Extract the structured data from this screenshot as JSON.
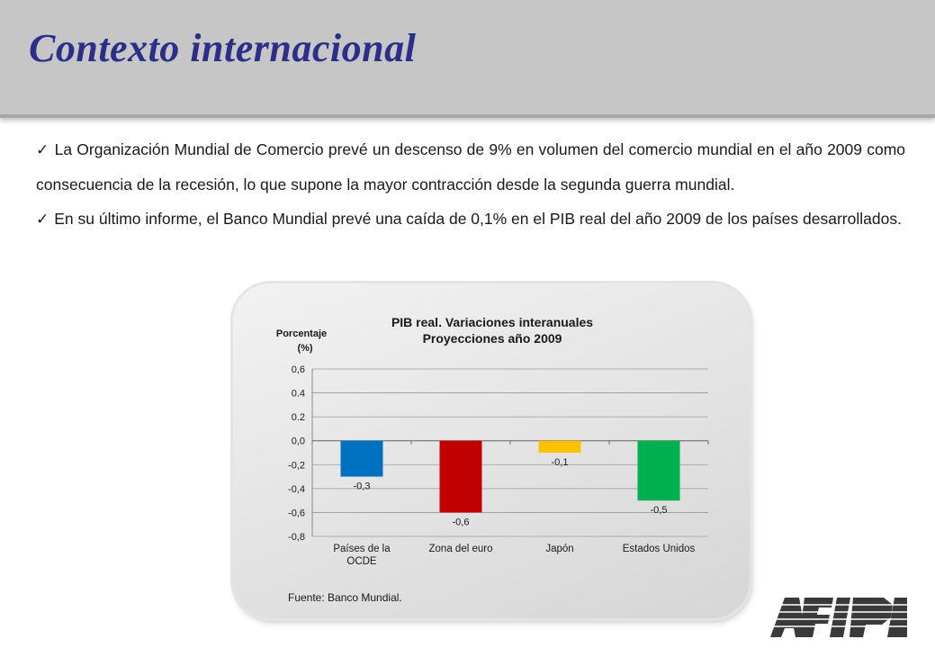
{
  "slide": {
    "title": "Contexto internacional",
    "bullets": [
      "La Organización Mundial de Comercio prevé un descenso de 9% en volumen del comercio mundial en el año 2009 como consecuencia de la recesión, lo que supone la mayor contracción desde la segunda guerra mundial.",
      "En su último informe, el Banco Mundial prevé una caída de 0,1% en el PIB real del año 2009 de los países desarrollados."
    ],
    "check_glyph": "✓",
    "source": "Fuente: Banco Mundial.",
    "logo_text": "AFIP"
  },
  "chart_data": {
    "type": "bar",
    "title": "PIB real. Variaciones interanuales",
    "subtitle": "Proyecciones año 2009",
    "ylabel": "Porcentaje (%)",
    "categories": [
      "Países de la OCDE",
      "Zona del euro",
      "Japón",
      "Estados Unidos"
    ],
    "values": [
      -0.3,
      -0.6,
      -0.1,
      -0.5
    ],
    "data_labels": [
      "-0,3",
      "-0,6",
      "-0,1",
      "-0,5"
    ],
    "colors": [
      "#0070c0",
      "#c00000",
      "#ffc000",
      "#00b050"
    ],
    "ylim": [
      -0.8,
      0.6
    ],
    "yticks": [
      0.6,
      0.4,
      0.2,
      0.0,
      -0.2,
      -0.4,
      -0.6,
      -0.8
    ],
    "ytick_labels": [
      "0,6",
      "0.4",
      "0.2",
      "0,0",
      "-0,2",
      "-0,4",
      "-0,6",
      "-0,8"
    ],
    "grid": true,
    "legend": "none"
  }
}
